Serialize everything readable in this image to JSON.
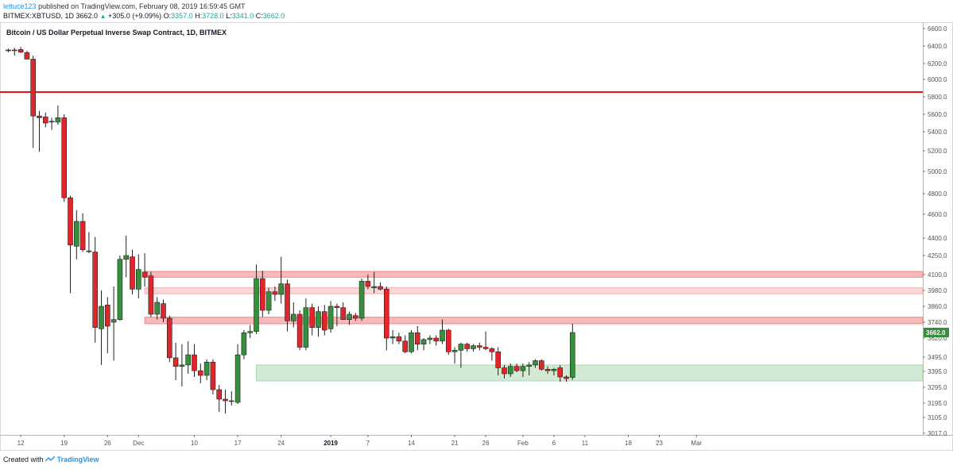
{
  "header": {
    "author": "lettuce123",
    "published_text": "published on TradingView.com, February 08, 2019 16:59:45 GMT",
    "symbol_line": "BITMEX:XBTUSD, 1D",
    "last": "3662.0",
    "change": "+305.0 (+9.09%)",
    "o_label": "O:",
    "o_val": "3357.0",
    "h_label": "H:",
    "h_val": "3728.0",
    "l_label": "L:",
    "l_val": "3341.0",
    "c_label": "C:",
    "c_val": "3662.0"
  },
  "footer": {
    "created_with": "Created with",
    "brand": "TradingView"
  },
  "chart_data": {
    "type": "candlestick",
    "title": "Bitcoin / US Dollar Perpetual Inverse Swap Contract, 1D, BITMEX",
    "y_ticks": [
      6600,
      6400,
      6200,
      6000,
      5800,
      5600,
      5400,
      5200,
      5000,
      4800,
      4600,
      4400,
      4250,
      4100,
      3980,
      3860,
      3740,
      3620,
      3495,
      3395,
      3295,
      3195,
      3105,
      3017
    ],
    "y_tick_labels": [
      "6600.0",
      "6400.0",
      "6200.0",
      "6000.0",
      "5800.0",
      "5600.0",
      "5400.0",
      "5200.0",
      "5000.0",
      "4800.0",
      "4600.0",
      "4400.0",
      "4250.0",
      "4100.0",
      "3980.0",
      "3860.0",
      "3740.0",
      "3620.0",
      "3495.0",
      "3395.0",
      "3295.0",
      "3195.0",
      "3105.0",
      "3017.0"
    ],
    "x_ticks": [
      {
        "index": 2,
        "label": "12",
        "bold": false
      },
      {
        "index": 9,
        "label": "19",
        "bold": false
      },
      {
        "index": 16,
        "label": "26",
        "bold": false
      },
      {
        "index": 21,
        "label": "Dec",
        "bold": false
      },
      {
        "index": 30,
        "label": "10",
        "bold": false
      },
      {
        "index": 37,
        "label": "17",
        "bold": false
      },
      {
        "index": 44,
        "label": "24",
        "bold": false
      },
      {
        "index": 52,
        "label": "2019",
        "bold": true
      },
      {
        "index": 58,
        "label": "7",
        "bold": false
      },
      {
        "index": 65,
        "label": "14",
        "bold": false
      },
      {
        "index": 72,
        "label": "21",
        "bold": false
      },
      {
        "index": 77,
        "label": "26",
        "bold": false
      },
      {
        "index": 83,
        "label": "Feb",
        "bold": false
      },
      {
        "index": 88,
        "label": "6",
        "bold": false
      },
      {
        "index": 93,
        "label": "11",
        "bold": false
      },
      {
        "index": 100,
        "label": "18",
        "bold": false
      },
      {
        "index": 105,
        "label": "23",
        "bold": false
      },
      {
        "index": 111,
        "label": "Mar",
        "bold": false
      }
    ],
    "last_price_label": "3662.0",
    "resistance_line": 5855,
    "zones": [
      {
        "low": 4080,
        "high": 4125,
        "color": "#f08080",
        "opacity": 0.55
      },
      {
        "low": 3955,
        "high": 4000,
        "color": "#f4a6a6",
        "opacity": 0.45
      },
      {
        "low": 3728,
        "high": 3778,
        "color": "#f08080",
        "opacity": 0.55
      },
      {
        "low": 3335,
        "high": 3440,
        "color": "#a5d6a7",
        "opacity": 0.5
      }
    ],
    "candles": [
      {
        "o": 6355,
        "h": 6370,
        "l": 6330,
        "c": 6345
      },
      {
        "o": 6350,
        "h": 6380,
        "l": 6290,
        "c": 6355
      },
      {
        "o": 6360,
        "h": 6390,
        "l": 6320,
        "c": 6330
      },
      {
        "o": 6325,
        "h": 6345,
        "l": 6250,
        "c": 6250
      },
      {
        "o": 6250,
        "h": 6290,
        "l": 5230,
        "c": 5580
      },
      {
        "o": 5580,
        "h": 5640,
        "l": 5190,
        "c": 5560
      },
      {
        "o": 5570,
        "h": 5620,
        "l": 5450,
        "c": 5500
      },
      {
        "o": 5510,
        "h": 5560,
        "l": 5420,
        "c": 5520
      },
      {
        "o": 5510,
        "h": 5700,
        "l": 5480,
        "c": 5560
      },
      {
        "o": 5560,
        "h": 5600,
        "l": 4720,
        "c": 4760
      },
      {
        "o": 4760,
        "h": 4780,
        "l": 3960,
        "c": 4340
      },
      {
        "o": 4330,
        "h": 4640,
        "l": 4220,
        "c": 4540
      },
      {
        "o": 4540,
        "h": 4610,
        "l": 4280,
        "c": 4300
      },
      {
        "o": 4290,
        "h": 4450,
        "l": 4270,
        "c": 4290
      },
      {
        "o": 4280,
        "h": 4410,
        "l": 3590,
        "c": 3700
      },
      {
        "o": 3690,
        "h": 3980,
        "l": 3440,
        "c": 3860
      },
      {
        "o": 3870,
        "h": 3930,
        "l": 3520,
        "c": 3710
      },
      {
        "o": 3740,
        "h": 4010,
        "l": 3470,
        "c": 3760
      },
      {
        "o": 3760,
        "h": 4250,
        "l": 3750,
        "c": 4220
      },
      {
        "o": 4220,
        "h": 4420,
        "l": 4080,
        "c": 4250
      },
      {
        "o": 4240,
        "h": 4300,
        "l": 3950,
        "c": 3990
      },
      {
        "o": 3990,
        "h": 4260,
        "l": 3920,
        "c": 4140
      },
      {
        "o": 4120,
        "h": 4270,
        "l": 4010,
        "c": 4080
      },
      {
        "o": 4090,
        "h": 4120,
        "l": 3780,
        "c": 3800
      },
      {
        "o": 3800,
        "h": 3930,
        "l": 3760,
        "c": 3890
      },
      {
        "o": 3880,
        "h": 3910,
        "l": 3740,
        "c": 3770
      },
      {
        "o": 3770,
        "h": 3790,
        "l": 3460,
        "c": 3490
      },
      {
        "o": 3490,
        "h": 3590,
        "l": 3340,
        "c": 3430
      },
      {
        "o": 3430,
        "h": 3580,
        "l": 3300,
        "c": 3440
      },
      {
        "o": 3440,
        "h": 3600,
        "l": 3380,
        "c": 3510
      },
      {
        "o": 3510,
        "h": 3580,
        "l": 3360,
        "c": 3400
      },
      {
        "o": 3400,
        "h": 3450,
        "l": 3320,
        "c": 3370
      },
      {
        "o": 3370,
        "h": 3480,
        "l": 3340,
        "c": 3460
      },
      {
        "o": 3460,
        "h": 3480,
        "l": 3250,
        "c": 3280
      },
      {
        "o": 3280,
        "h": 3310,
        "l": 3140,
        "c": 3220
      },
      {
        "o": 3220,
        "h": 3280,
        "l": 3130,
        "c": 3210
      },
      {
        "o": 3210,
        "h": 3270,
        "l": 3180,
        "c": 3210
      },
      {
        "o": 3200,
        "h": 3580,
        "l": 3190,
        "c": 3510
      },
      {
        "o": 3510,
        "h": 3680,
        "l": 3480,
        "c": 3660
      },
      {
        "o": 3660,
        "h": 3720,
        "l": 3620,
        "c": 3670
      },
      {
        "o": 3670,
        "h": 4180,
        "l": 3650,
        "c": 4070
      },
      {
        "o": 4070,
        "h": 4130,
        "l": 3780,
        "c": 3830
      },
      {
        "o": 3830,
        "h": 4000,
        "l": 3800,
        "c": 3970
      },
      {
        "o": 3970,
        "h": 4010,
        "l": 3900,
        "c": 3950
      },
      {
        "o": 3950,
        "h": 4240,
        "l": 3880,
        "c": 4030
      },
      {
        "o": 4030,
        "h": 4060,
        "l": 3670,
        "c": 3750
      },
      {
        "o": 3750,
        "h": 3890,
        "l": 3700,
        "c": 3800
      },
      {
        "o": 3800,
        "h": 3830,
        "l": 3540,
        "c": 3560
      },
      {
        "o": 3560,
        "h": 3920,
        "l": 3540,
        "c": 3850
      },
      {
        "o": 3850,
        "h": 3880,
        "l": 3640,
        "c": 3700
      },
      {
        "o": 3700,
        "h": 3860,
        "l": 3630,
        "c": 3820
      },
      {
        "o": 3820,
        "h": 3870,
        "l": 3640,
        "c": 3680
      },
      {
        "o": 3690,
        "h": 3900,
        "l": 3660,
        "c": 3860
      },
      {
        "o": 3860,
        "h": 3880,
        "l": 3710,
        "c": 3850
      },
      {
        "o": 3850,
        "h": 3890,
        "l": 3760,
        "c": 3760
      },
      {
        "o": 3760,
        "h": 3820,
        "l": 3720,
        "c": 3800
      },
      {
        "o": 3790,
        "h": 3810,
        "l": 3750,
        "c": 3770
      },
      {
        "o": 3770,
        "h": 4070,
        "l": 3750,
        "c": 4050
      },
      {
        "o": 4050,
        "h": 4100,
        "l": 3990,
        "c": 4010
      },
      {
        "o": 4000,
        "h": 4120,
        "l": 3960,
        "c": 4010
      },
      {
        "o": 4010,
        "h": 4040,
        "l": 3980,
        "c": 3990
      },
      {
        "o": 3990,
        "h": 4010,
        "l": 3540,
        "c": 3620
      },
      {
        "o": 3620,
        "h": 3680,
        "l": 3580,
        "c": 3630
      },
      {
        "o": 3630,
        "h": 3660,
        "l": 3580,
        "c": 3600
      },
      {
        "o": 3600,
        "h": 3640,
        "l": 3520,
        "c": 3530
      },
      {
        "o": 3530,
        "h": 3680,
        "l": 3520,
        "c": 3660
      },
      {
        "o": 3660,
        "h": 3710,
        "l": 3540,
        "c": 3580
      },
      {
        "o": 3580,
        "h": 3620,
        "l": 3540,
        "c": 3610
      },
      {
        "o": 3610,
        "h": 3640,
        "l": 3580,
        "c": 3620
      },
      {
        "o": 3620,
        "h": 3640,
        "l": 3570,
        "c": 3600
      },
      {
        "o": 3600,
        "h": 3760,
        "l": 3580,
        "c": 3680
      },
      {
        "o": 3680,
        "h": 3690,
        "l": 3510,
        "c": 3530
      },
      {
        "o": 3530,
        "h": 3560,
        "l": 3450,
        "c": 3540
      },
      {
        "o": 3540,
        "h": 3590,
        "l": 3420,
        "c": 3580
      },
      {
        "o": 3580,
        "h": 3590,
        "l": 3530,
        "c": 3550
      },
      {
        "o": 3550,
        "h": 3580,
        "l": 3530,
        "c": 3570
      },
      {
        "o": 3570,
        "h": 3590,
        "l": 3540,
        "c": 3560
      },
      {
        "o": 3560,
        "h": 3670,
        "l": 3540,
        "c": 3550
      },
      {
        "o": 3550,
        "h": 3560,
        "l": 3470,
        "c": 3530
      },
      {
        "o": 3530,
        "h": 3560,
        "l": 3370,
        "c": 3420
      },
      {
        "o": 3420,
        "h": 3440,
        "l": 3350,
        "c": 3380
      },
      {
        "o": 3380,
        "h": 3450,
        "l": 3360,
        "c": 3430
      },
      {
        "o": 3430,
        "h": 3450,
        "l": 3390,
        "c": 3400
      },
      {
        "o": 3400,
        "h": 3450,
        "l": 3360,
        "c": 3430
      },
      {
        "o": 3430,
        "h": 3460,
        "l": 3370,
        "c": 3440
      },
      {
        "o": 3440,
        "h": 3480,
        "l": 3420,
        "c": 3470
      },
      {
        "o": 3470,
        "h": 3480,
        "l": 3400,
        "c": 3410
      },
      {
        "o": 3410,
        "h": 3430,
        "l": 3380,
        "c": 3400
      },
      {
        "o": 3400,
        "h": 3420,
        "l": 3370,
        "c": 3410
      },
      {
        "o": 3420,
        "h": 3440,
        "l": 3330,
        "c": 3360
      },
      {
        "o": 3360,
        "h": 3370,
        "l": 3330,
        "c": 3350
      },
      {
        "o": 3357,
        "h": 3728,
        "l": 3341,
        "c": 3662
      }
    ],
    "colors": {
      "up": "#388e3c",
      "down": "#e0262a",
      "line": "#f01010",
      "axis": "#555555"
    }
  }
}
